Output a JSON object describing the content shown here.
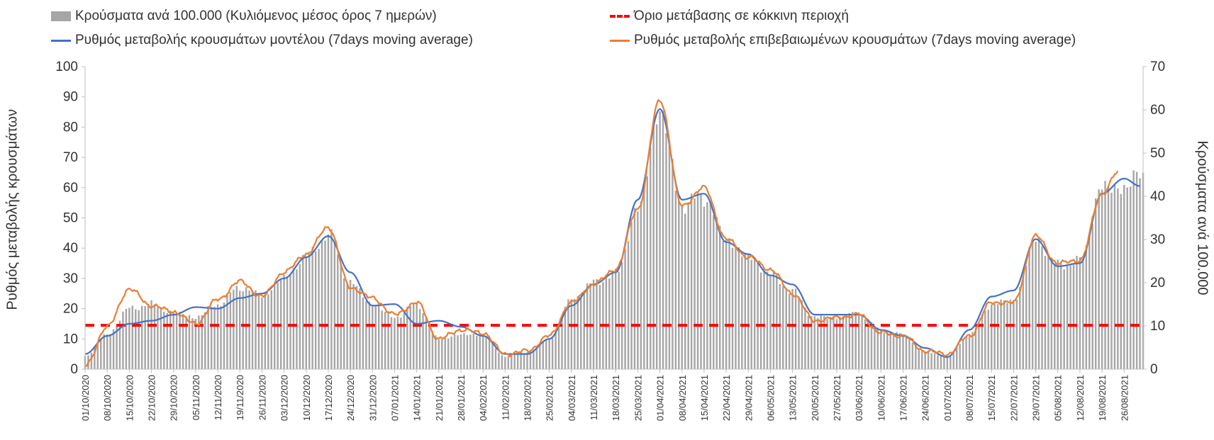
{
  "chart_data": {
    "type": "bar",
    "legend": {
      "bars": "Κρούσματα ανά 100.000 (Κυλιόμενος μέσος όρος 7 ημερών)",
      "threshold": "Όριο μετάβασης σε κόκκινη περιοχή",
      "model": "Ρυθμός μεταβολής κρουσμάτων μοντέλου (7days moving average)",
      "confirmed": "Ρυθμός μεταβολής επιβεβαιωμένων κρουσμάτων (7days moving average)"
    },
    "ylabel_left": "Ρυθμός μεταβολής κρουσμάτων",
    "ylabel_right": "Κρούσματα ανά 100.000",
    "ylim_left": [
      0,
      100
    ],
    "ylim_right": [
      0,
      70
    ],
    "yticks_left": [
      "0",
      "10",
      "20",
      "30",
      "40",
      "50",
      "60",
      "70",
      "80",
      "90",
      "100"
    ],
    "yticks_right": [
      "0",
      "10",
      "20",
      "30",
      "40",
      "50",
      "60",
      "70"
    ],
    "x_start": "2020-10-01",
    "x_end": "2021-09-01",
    "x_ticks": [
      "01/10/2020",
      "08/10/2020",
      "15/10/2020",
      "22/10/2020",
      "29/10/2020",
      "05/11/2020",
      "12/11/2020",
      "19/11/2020",
      "26/11/2020",
      "03/12/2020",
      "10/12/2020",
      "17/12/2020",
      "24/12/2020",
      "31/12/2020",
      "07/01/2021",
      "14/01/2021",
      "21/01/2021",
      "28/01/2021",
      "04/02/2021",
      "11/02/2021",
      "18/02/2021",
      "25/02/2021",
      "04/03/2021",
      "11/03/2021",
      "18/03/2021",
      "25/03/2021",
      "01/04/2021",
      "08/04/2021",
      "15/04/2021",
      "22/04/2021",
      "29/04/2021",
      "06/05/2021",
      "13/05/2021",
      "20/05/2021",
      "27/05/2021",
      "03/06/2021",
      "10/06/2021",
      "17/06/2021",
      "24/06/2021",
      "01/07/2021",
      "08/07/2021",
      "15/07/2021",
      "22/07/2021",
      "29/07/2021",
      "05/08/2021",
      "12/08/2021",
      "19/08/2021",
      "26/08/2021"
    ],
    "threshold_left": 14.5,
    "bars_right_axis": [
      {
        "x": "2020-10-01",
        "y": 3
      },
      {
        "x": "2020-10-08",
        "y": 8
      },
      {
        "x": "2020-10-15",
        "y": 14
      },
      {
        "x": "2020-10-22",
        "y": 15
      },
      {
        "x": "2020-10-29",
        "y": 13
      },
      {
        "x": "2020-11-05",
        "y": 12
      },
      {
        "x": "2020-11-12",
        "y": 15
      },
      {
        "x": "2020-11-19",
        "y": 19
      },
      {
        "x": "2020-11-26",
        "y": 17
      },
      {
        "x": "2020-12-03",
        "y": 21
      },
      {
        "x": "2020-12-10",
        "y": 26
      },
      {
        "x": "2020-12-17",
        "y": 31
      },
      {
        "x": "2020-12-24",
        "y": 20
      },
      {
        "x": "2020-12-31",
        "y": 15
      },
      {
        "x": "2021-01-07",
        "y": 12
      },
      {
        "x": "2021-01-14",
        "y": 15
      },
      {
        "x": "2021-01-21",
        "y": 7
      },
      {
        "x": "2021-01-28",
        "y": 8
      },
      {
        "x": "2021-02-04",
        "y": 8
      },
      {
        "x": "2021-02-11",
        "y": 3
      },
      {
        "x": "2021-02-18",
        "y": 4
      },
      {
        "x": "2021-02-25",
        "y": 7
      },
      {
        "x": "2021-03-04",
        "y": 16
      },
      {
        "x": "2021-03-11",
        "y": 20
      },
      {
        "x": "2021-03-18",
        "y": 22
      },
      {
        "x": "2021-03-25",
        "y": 37
      },
      {
        "x": "2021-04-01",
        "y": 60
      },
      {
        "x": "2021-04-08",
        "y": 38
      },
      {
        "x": "2021-04-15",
        "y": 40
      },
      {
        "x": "2021-04-22",
        "y": 30
      },
      {
        "x": "2021-04-29",
        "y": 26
      },
      {
        "x": "2021-05-06",
        "y": 22
      },
      {
        "x": "2021-05-13",
        "y": 18
      },
      {
        "x": "2021-05-20",
        "y": 12
      },
      {
        "x": "2021-05-27",
        "y": 12
      },
      {
        "x": "2021-06-03",
        "y": 13
      },
      {
        "x": "2021-06-10",
        "y": 9
      },
      {
        "x": "2021-06-17",
        "y": 8
      },
      {
        "x": "2021-06-24",
        "y": 4
      },
      {
        "x": "2021-07-01",
        "y": 3
      },
      {
        "x": "2021-07-08",
        "y": 8
      },
      {
        "x": "2021-07-15",
        "y": 15
      },
      {
        "x": "2021-07-22",
        "y": 16
      },
      {
        "x": "2021-07-29",
        "y": 30
      },
      {
        "x": "2021-08-05",
        "y": 24
      },
      {
        "x": "2021-08-12",
        "y": 25
      },
      {
        "x": "2021-08-19",
        "y": 42
      },
      {
        "x": "2021-08-26",
        "y": 42
      },
      {
        "x": "2021-08-31",
        "y": 45
      }
    ],
    "series": [
      {
        "name": "Ρυθμός μεταβολής κρουσμάτων μοντέλου (7days moving average)",
        "color": "#4472c4",
        "axis": "left",
        "points": [
          {
            "x": "2020-10-01",
            "y": 5
          },
          {
            "x": "2020-10-08",
            "y": 11
          },
          {
            "x": "2020-10-15",
            "y": 15
          },
          {
            "x": "2020-10-22",
            "y": 16
          },
          {
            "x": "2020-10-29",
            "y": 18
          },
          {
            "x": "2020-11-05",
            "y": 20.5
          },
          {
            "x": "2020-11-12",
            "y": 20
          },
          {
            "x": "2020-11-19",
            "y": 23.5
          },
          {
            "x": "2020-11-26",
            "y": 25
          },
          {
            "x": "2020-12-03",
            "y": 30
          },
          {
            "x": "2020-12-10",
            "y": 37
          },
          {
            "x": "2020-12-17",
            "y": 44
          },
          {
            "x": "2020-12-24",
            "y": 32
          },
          {
            "x": "2020-12-31",
            "y": 21
          },
          {
            "x": "2021-01-07",
            "y": 21.5
          },
          {
            "x": "2021-01-14",
            "y": 15
          },
          {
            "x": "2021-01-21",
            "y": 16
          },
          {
            "x": "2021-01-28",
            "y": 14
          },
          {
            "x": "2021-02-04",
            "y": 11
          },
          {
            "x": "2021-02-11",
            "y": 5
          },
          {
            "x": "2021-02-18",
            "y": 5
          },
          {
            "x": "2021-02-25",
            "y": 10
          },
          {
            "x": "2021-03-04",
            "y": 21
          },
          {
            "x": "2021-03-11",
            "y": 28
          },
          {
            "x": "2021-03-18",
            "y": 32
          },
          {
            "x": "2021-03-25",
            "y": 56
          },
          {
            "x": "2021-04-01",
            "y": 86
          },
          {
            "x": "2021-04-08",
            "y": 56
          },
          {
            "x": "2021-04-15",
            "y": 58
          },
          {
            "x": "2021-04-22",
            "y": 42
          },
          {
            "x": "2021-04-29",
            "y": 38
          },
          {
            "x": "2021-05-06",
            "y": 31
          },
          {
            "x": "2021-05-13",
            "y": 28
          },
          {
            "x": "2021-05-20",
            "y": 18
          },
          {
            "x": "2021-05-27",
            "y": 18
          },
          {
            "x": "2021-06-03",
            "y": 18
          },
          {
            "x": "2021-06-10",
            "y": 13
          },
          {
            "x": "2021-06-17",
            "y": 11
          },
          {
            "x": "2021-06-24",
            "y": 7
          },
          {
            "x": "2021-07-01",
            "y": 4
          },
          {
            "x": "2021-07-08",
            "y": 13
          },
          {
            "x": "2021-07-15",
            "y": 24
          },
          {
            "x": "2021-07-22",
            "y": 26
          },
          {
            "x": "2021-07-29",
            "y": 43
          },
          {
            "x": "2021-08-05",
            "y": 34
          },
          {
            "x": "2021-08-12",
            "y": 35
          },
          {
            "x": "2021-08-19",
            "y": 58
          },
          {
            "x": "2021-08-26",
            "y": 63
          },
          {
            "x": "2021-08-31",
            "y": 60.5
          }
        ]
      },
      {
        "name": "Ρυθμός μεταβολής επιβεβαιωμένων κρουσμάτων (7days moving average)",
        "color": "#ed7d31",
        "axis": "left",
        "points": [
          {
            "x": "2020-10-01",
            "y": 1
          },
          {
            "x": "2020-10-08",
            "y": 14
          },
          {
            "x": "2020-10-15",
            "y": 26.5
          },
          {
            "x": "2020-10-22",
            "y": 21
          },
          {
            "x": "2020-10-29",
            "y": 19
          },
          {
            "x": "2020-11-05",
            "y": 15
          },
          {
            "x": "2020-11-12",
            "y": 23
          },
          {
            "x": "2020-11-19",
            "y": 29
          },
          {
            "x": "2020-11-26",
            "y": 24
          },
          {
            "x": "2020-12-03",
            "y": 32
          },
          {
            "x": "2020-12-10",
            "y": 38
          },
          {
            "x": "2020-12-17",
            "y": 47
          },
          {
            "x": "2020-12-24",
            "y": 27
          },
          {
            "x": "2020-12-31",
            "y": 23.5
          },
          {
            "x": "2021-01-07",
            "y": 18
          },
          {
            "x": "2021-01-14",
            "y": 22
          },
          {
            "x": "2021-01-21",
            "y": 10
          },
          {
            "x": "2021-01-28",
            "y": 13
          },
          {
            "x": "2021-02-04",
            "y": 12
          },
          {
            "x": "2021-02-11",
            "y": 5
          },
          {
            "x": "2021-02-18",
            "y": 6
          },
          {
            "x": "2021-02-25",
            "y": 11
          },
          {
            "x": "2021-03-04",
            "y": 22
          },
          {
            "x": "2021-03-11",
            "y": 28
          },
          {
            "x": "2021-03-18",
            "y": 33
          },
          {
            "x": "2021-03-25",
            "y": 53
          },
          {
            "x": "2021-04-01",
            "y": 89
          },
          {
            "x": "2021-04-08",
            "y": 54
          },
          {
            "x": "2021-04-15",
            "y": 60
          },
          {
            "x": "2021-04-22",
            "y": 43
          },
          {
            "x": "2021-04-29",
            "y": 37
          },
          {
            "x": "2021-05-06",
            "y": 33
          },
          {
            "x": "2021-05-13",
            "y": 25
          },
          {
            "x": "2021-05-20",
            "y": 16
          },
          {
            "x": "2021-05-27",
            "y": 17
          },
          {
            "x": "2021-06-03",
            "y": 18
          },
          {
            "x": "2021-06-10",
            "y": 12
          },
          {
            "x": "2021-06-17",
            "y": 11
          },
          {
            "x": "2021-06-24",
            "y": 6
          },
          {
            "x": "2021-07-01",
            "y": 5
          },
          {
            "x": "2021-07-08",
            "y": 11
          },
          {
            "x": "2021-07-15",
            "y": 22
          },
          {
            "x": "2021-07-22",
            "y": 22
          },
          {
            "x": "2021-07-29",
            "y": 44
          },
          {
            "x": "2021-08-05",
            "y": 35
          },
          {
            "x": "2021-08-12",
            "y": 36
          },
          {
            "x": "2021-08-19",
            "y": 58
          },
          {
            "x": "2021-08-24",
            "y": 65
          }
        ]
      }
    ],
    "bar_color": "#a6a6a6",
    "threshold_color": "#ff0000",
    "grid": false
  }
}
